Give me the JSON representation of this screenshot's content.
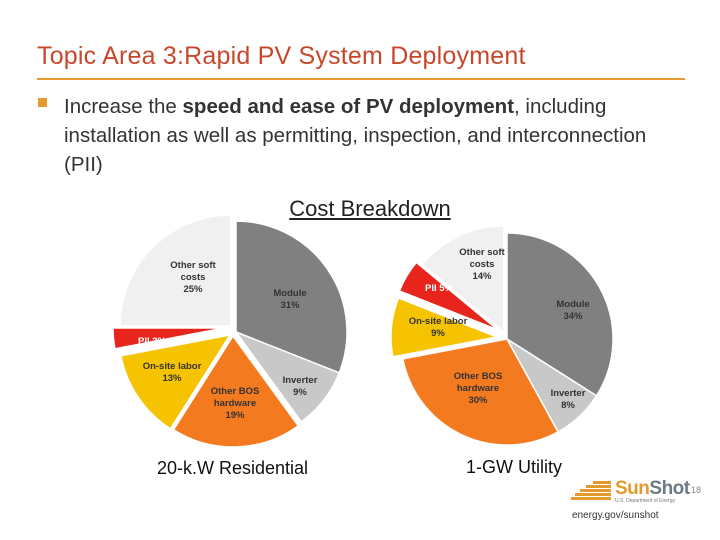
{
  "slide": {
    "title": "Topic Area 3:Rapid PV System Deployment",
    "bullet": {
      "pre": "Increase the ",
      "bold": "speed and ease of PV deployment",
      "post": ", including installation as well as permitting, inspection, and interconnection (PII)"
    },
    "subheading": "Cost Breakdown",
    "page_number": "18",
    "url": "energy.gov/sunshot",
    "logo": {
      "sun": "Sun",
      "shot": "Shot",
      "subtitle": "U.S. Department of Energy"
    }
  },
  "colors": {
    "title": "#c8472a",
    "accent": "#e39b2d",
    "module": "#808080",
    "inverter": "#c8c8c8",
    "other_bos": "#f47a20",
    "onsite_labor": "#f6c300",
    "pii": "#e8251c",
    "other_soft": "#f0f0f0"
  },
  "chart_data": [
    {
      "type": "pie",
      "title": "20-k.W Residential",
      "slices": [
        {
          "key": "module",
          "label": "Module",
          "value": 31,
          "pct": "31%",
          "color": "#808080"
        },
        {
          "key": "inverter",
          "label": "Inverter",
          "value": 9,
          "pct": "9%",
          "color": "#c8c8c8"
        },
        {
          "key": "other_bos",
          "label": "Other BOS hardware",
          "value": 19,
          "pct": "19%",
          "color": "#f47a20"
        },
        {
          "key": "onsite_labor",
          "label": "On-site labor",
          "value": 13,
          "pct": "13%",
          "color": "#f6c300"
        },
        {
          "key": "pii",
          "label": "PII",
          "value": 3,
          "pct": "3%",
          "color": "#e8251c"
        },
        {
          "key": "other_soft",
          "label": "Other soft costs",
          "value": 25,
          "pct": "25%",
          "color": "#f0f0f0"
        }
      ]
    },
    {
      "type": "pie",
      "title": "1-GW Utility",
      "slices": [
        {
          "key": "module",
          "label": "Module",
          "value": 34,
          "pct": "34%",
          "color": "#808080"
        },
        {
          "key": "inverter",
          "label": "Inverter",
          "value": 8,
          "pct": "8%",
          "color": "#c8c8c8"
        },
        {
          "key": "other_bos",
          "label": "Other BOS hardware",
          "value": 30,
          "pct": "30%",
          "color": "#f47a20"
        },
        {
          "key": "onsite_labor",
          "label": "On-site labor",
          "value": 9,
          "pct": "9%",
          "color": "#f6c300"
        },
        {
          "key": "pii",
          "label": "PII",
          "value": 5,
          "pct": "5%",
          "color": "#e8251c"
        },
        {
          "key": "other_soft",
          "label": "Other soft costs",
          "value": 14,
          "pct": "14%",
          "color": "#f0f0f0"
        }
      ]
    }
  ]
}
